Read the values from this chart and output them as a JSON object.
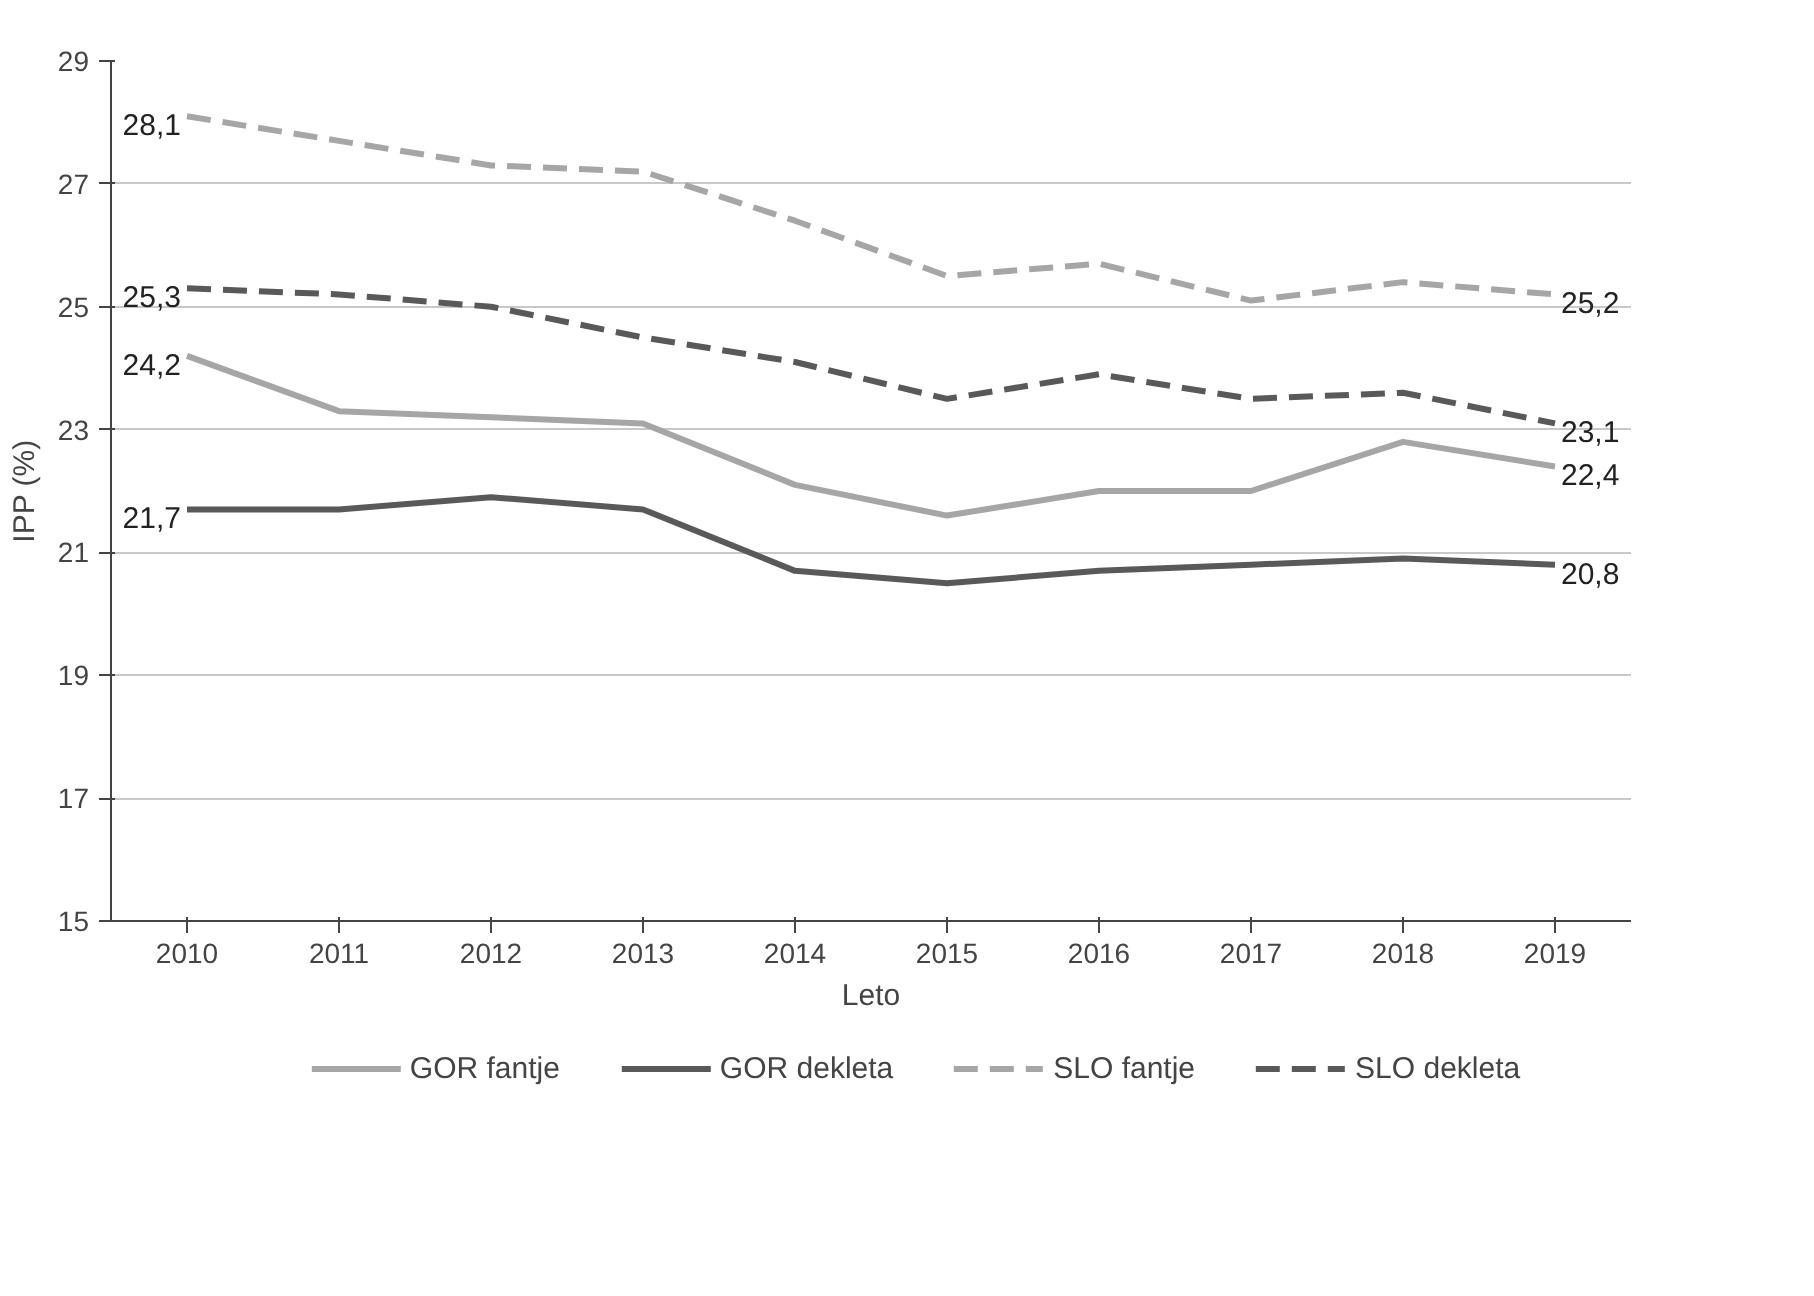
{
  "chart_data": {
    "type": "line",
    "xlabel": "Leto",
    "ylabel": "IPP (%)",
    "categories": [
      "2010",
      "2011",
      "2012",
      "2013",
      "2014",
      "2015",
      "2016",
      "2017",
      "2018",
      "2019"
    ],
    "ylim": [
      15,
      29
    ],
    "yticks": [
      15,
      17,
      19,
      21,
      23,
      25,
      27,
      29
    ],
    "grid": "y",
    "legend": "bottom",
    "marker": "none",
    "series": [
      {
        "name": "GOR fantje",
        "color": "#a6a6a6",
        "line_style": "solid",
        "values": [
          24.2,
          23.3,
          23.2,
          23.1,
          22.1,
          21.6,
          22.0,
          22.0,
          22.8,
          22.4
        ],
        "value_labels": [
          "24,2",
          null,
          null,
          null,
          null,
          null,
          null,
          null,
          null,
          "22,4"
        ]
      },
      {
        "name": "GOR dekleta",
        "color": "#595959",
        "line_style": "solid",
        "values": [
          21.7,
          21.7,
          21.9,
          21.7,
          20.7,
          20.5,
          20.7,
          20.8,
          20.9,
          20.8
        ],
        "value_labels": [
          "21,7",
          null,
          null,
          null,
          null,
          null,
          null,
          null,
          null,
          "20,8"
        ]
      },
      {
        "name": "SLO fantje",
        "color": "#a6a6a6",
        "line_style": "dashed",
        "values": [
          28.1,
          27.7,
          27.3,
          27.2,
          26.4,
          25.5,
          25.7,
          25.1,
          25.4,
          25.2
        ],
        "value_labels": [
          "28,1",
          null,
          null,
          null,
          null,
          null,
          null,
          null,
          null,
          "25,2"
        ]
      },
      {
        "name": "SLO dekleta",
        "color": "#595959",
        "line_style": "dashed",
        "values": [
          25.3,
          25.2,
          25.0,
          24.5,
          24.1,
          23.5,
          23.9,
          23.5,
          23.6,
          23.1
        ],
        "value_labels": [
          "25,3",
          null,
          null,
          null,
          null,
          null,
          null,
          null,
          null,
          "23,1"
        ]
      }
    ]
  }
}
